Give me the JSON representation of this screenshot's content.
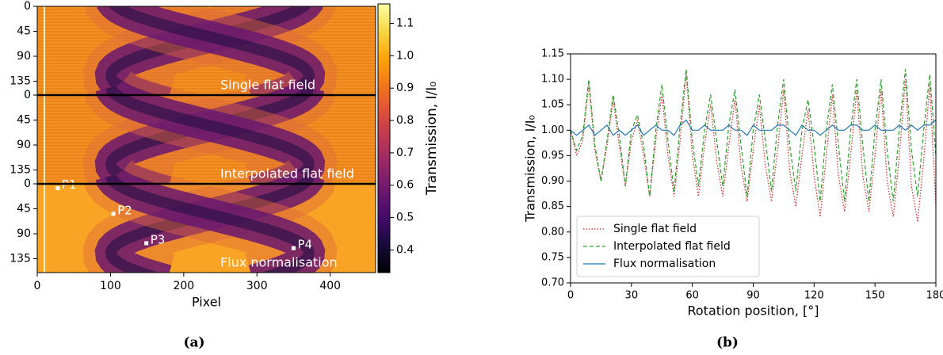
{
  "chart_data": [
    {
      "type": "heatmap",
      "caption": "(a)",
      "xlabel": "Pixel",
      "xlim": [
        0,
        462
      ],
      "xticks": [
        0,
        100,
        200,
        300,
        400
      ],
      "ylim": [
        0,
        160
      ],
      "yticks": [
        0,
        45,
        90,
        135
      ],
      "panels": [
        {
          "label": "Single flat field"
        },
        {
          "label": "Interpolated flat field"
        },
        {
          "label": "Flux normalisation",
          "points": [
            {
              "label": "P1",
              "x": 28,
              "y": 8
            },
            {
              "label": "P2",
              "x": 104,
              "y": 54
            },
            {
              "label": "P3",
              "x": 149,
              "y": 107
            },
            {
              "label": "P4",
              "x": 350,
              "y": 116
            }
          ]
        }
      ],
      "colorbar": {
        "label": "Transmission, I/I₀",
        "clim": [
          0.33,
          1.16
        ],
        "colormap": "inferno",
        "ticks": [
          0.4,
          0.5,
          0.6,
          0.7,
          0.8,
          0.9,
          {
            "value": 1,
            "label": "1.0"
          },
          1.1
        ]
      }
    },
    {
      "type": "line",
      "caption": "(b)",
      "xlabel": "Rotation position, [°]",
      "ylabel": "Transmission, I/I₀",
      "xlim": [
        0,
        180
      ],
      "xticks": [
        0,
        30,
        60,
        90,
        120,
        150,
        180
      ],
      "ylim": [
        0.7,
        1.15
      ],
      "yticks": [
        {
          "value": 0.7,
          "label": "0.70"
        },
        0.75,
        {
          "value": 0.8,
          "label": "0.80"
        },
        0.85,
        {
          "value": 0.9,
          "label": "0.90"
        },
        0.95,
        {
          "value": 1,
          "label": "1.00"
        },
        1.05,
        {
          "value": 1.1,
          "label": "1.10"
        },
        1.15
      ],
      "legend": "lower left",
      "x": [
        0,
        3,
        6,
        9,
        12,
        15,
        18,
        21,
        24,
        27,
        30,
        33,
        36,
        39,
        42,
        45,
        48,
        51,
        54,
        57,
        60,
        63,
        66,
        69,
        72,
        75,
        78,
        81,
        84,
        87,
        90,
        93,
        96,
        99,
        102,
        105,
        108,
        111,
        114,
        117,
        120,
        123,
        126,
        129,
        132,
        135,
        138,
        141,
        144,
        147,
        150,
        153,
        156,
        159,
        162,
        165,
        168,
        171,
        174,
        177,
        180
      ],
      "series": [
        {
          "name": "Single flat field",
          "color": "#d62728",
          "dash": "dotted",
          "values": [
            1.0,
            0.95,
            0.98,
            1.09,
            0.96,
            0.9,
            0.97,
            1.06,
            0.97,
            0.89,
            0.98,
            1.02,
            0.95,
            0.87,
            0.98,
            1.07,
            0.95,
            0.87,
            0.98,
            1.11,
            0.95,
            0.87,
            0.97,
            1.05,
            0.94,
            0.87,
            0.97,
            1.06,
            0.93,
            0.86,
            0.96,
            1.05,
            0.93,
            0.86,
            0.96,
            1.08,
            0.92,
            0.85,
            0.95,
            1.04,
            0.91,
            0.83,
            0.95,
            1.07,
            0.91,
            0.84,
            0.95,
            1.08,
            0.91,
            0.84,
            0.95,
            1.08,
            0.9,
            0.83,
            0.95,
            1.1,
            0.89,
            0.82,
            0.94,
            1.09,
            0.85
          ]
        },
        {
          "name": "Interpolated flat field",
          "color": "#2ca02c",
          "dash": "dashed",
          "values": [
            1.0,
            0.96,
            0.99,
            1.1,
            0.97,
            0.9,
            0.98,
            1.07,
            0.99,
            0.89,
            1.0,
            1.03,
            0.97,
            0.87,
            1.0,
            1.09,
            0.98,
            0.88,
            1.01,
            1.12,
            0.98,
            0.89,
            1.0,
            1.07,
            0.98,
            0.89,
            1.01,
            1.08,
            0.97,
            0.87,
            1.0,
            1.07,
            0.98,
            0.88,
            1.01,
            1.1,
            0.97,
            0.88,
            1.0,
            1.06,
            0.97,
            0.86,
            1.0,
            1.09,
            0.97,
            0.86,
            1.0,
            1.1,
            0.97,
            0.86,
            1.0,
            1.1,
            0.96,
            0.86,
            1.0,
            1.12,
            0.96,
            0.87,
            1.0,
            1.11,
            0.95
          ]
        },
        {
          "name": "Flux normalisation",
          "color": "#1f77b4",
          "dash": "solid",
          "values": [
            1.0,
            0.99,
            1.0,
            1.01,
            0.99,
            1.0,
            1.01,
            0.99,
            1.0,
            0.99,
            1.0,
            1.01,
            0.99,
            1.0,
            1.01,
            1.0,
            1.0,
            0.99,
            1.01,
            1.02,
            1.0,
            1.0,
            1.01,
            1.0,
            1.0,
            1.0,
            1.01,
            1.0,
            1.0,
            0.99,
            1.01,
            1.0,
            1.0,
            1.0,
            1.01,
            1.01,
            1.0,
            0.99,
            1.01,
            1.0,
            1.0,
            0.99,
            1.0,
            1.01,
            1.0,
            1.0,
            1.01,
            1.01,
            1.0,
            1.0,
            1.01,
            1.0,
            1.0,
            1.0,
            1.01,
            1.0,
            1.01,
            1.0,
            1.01,
            1.01,
            1.02
          ]
        }
      ]
    }
  ]
}
